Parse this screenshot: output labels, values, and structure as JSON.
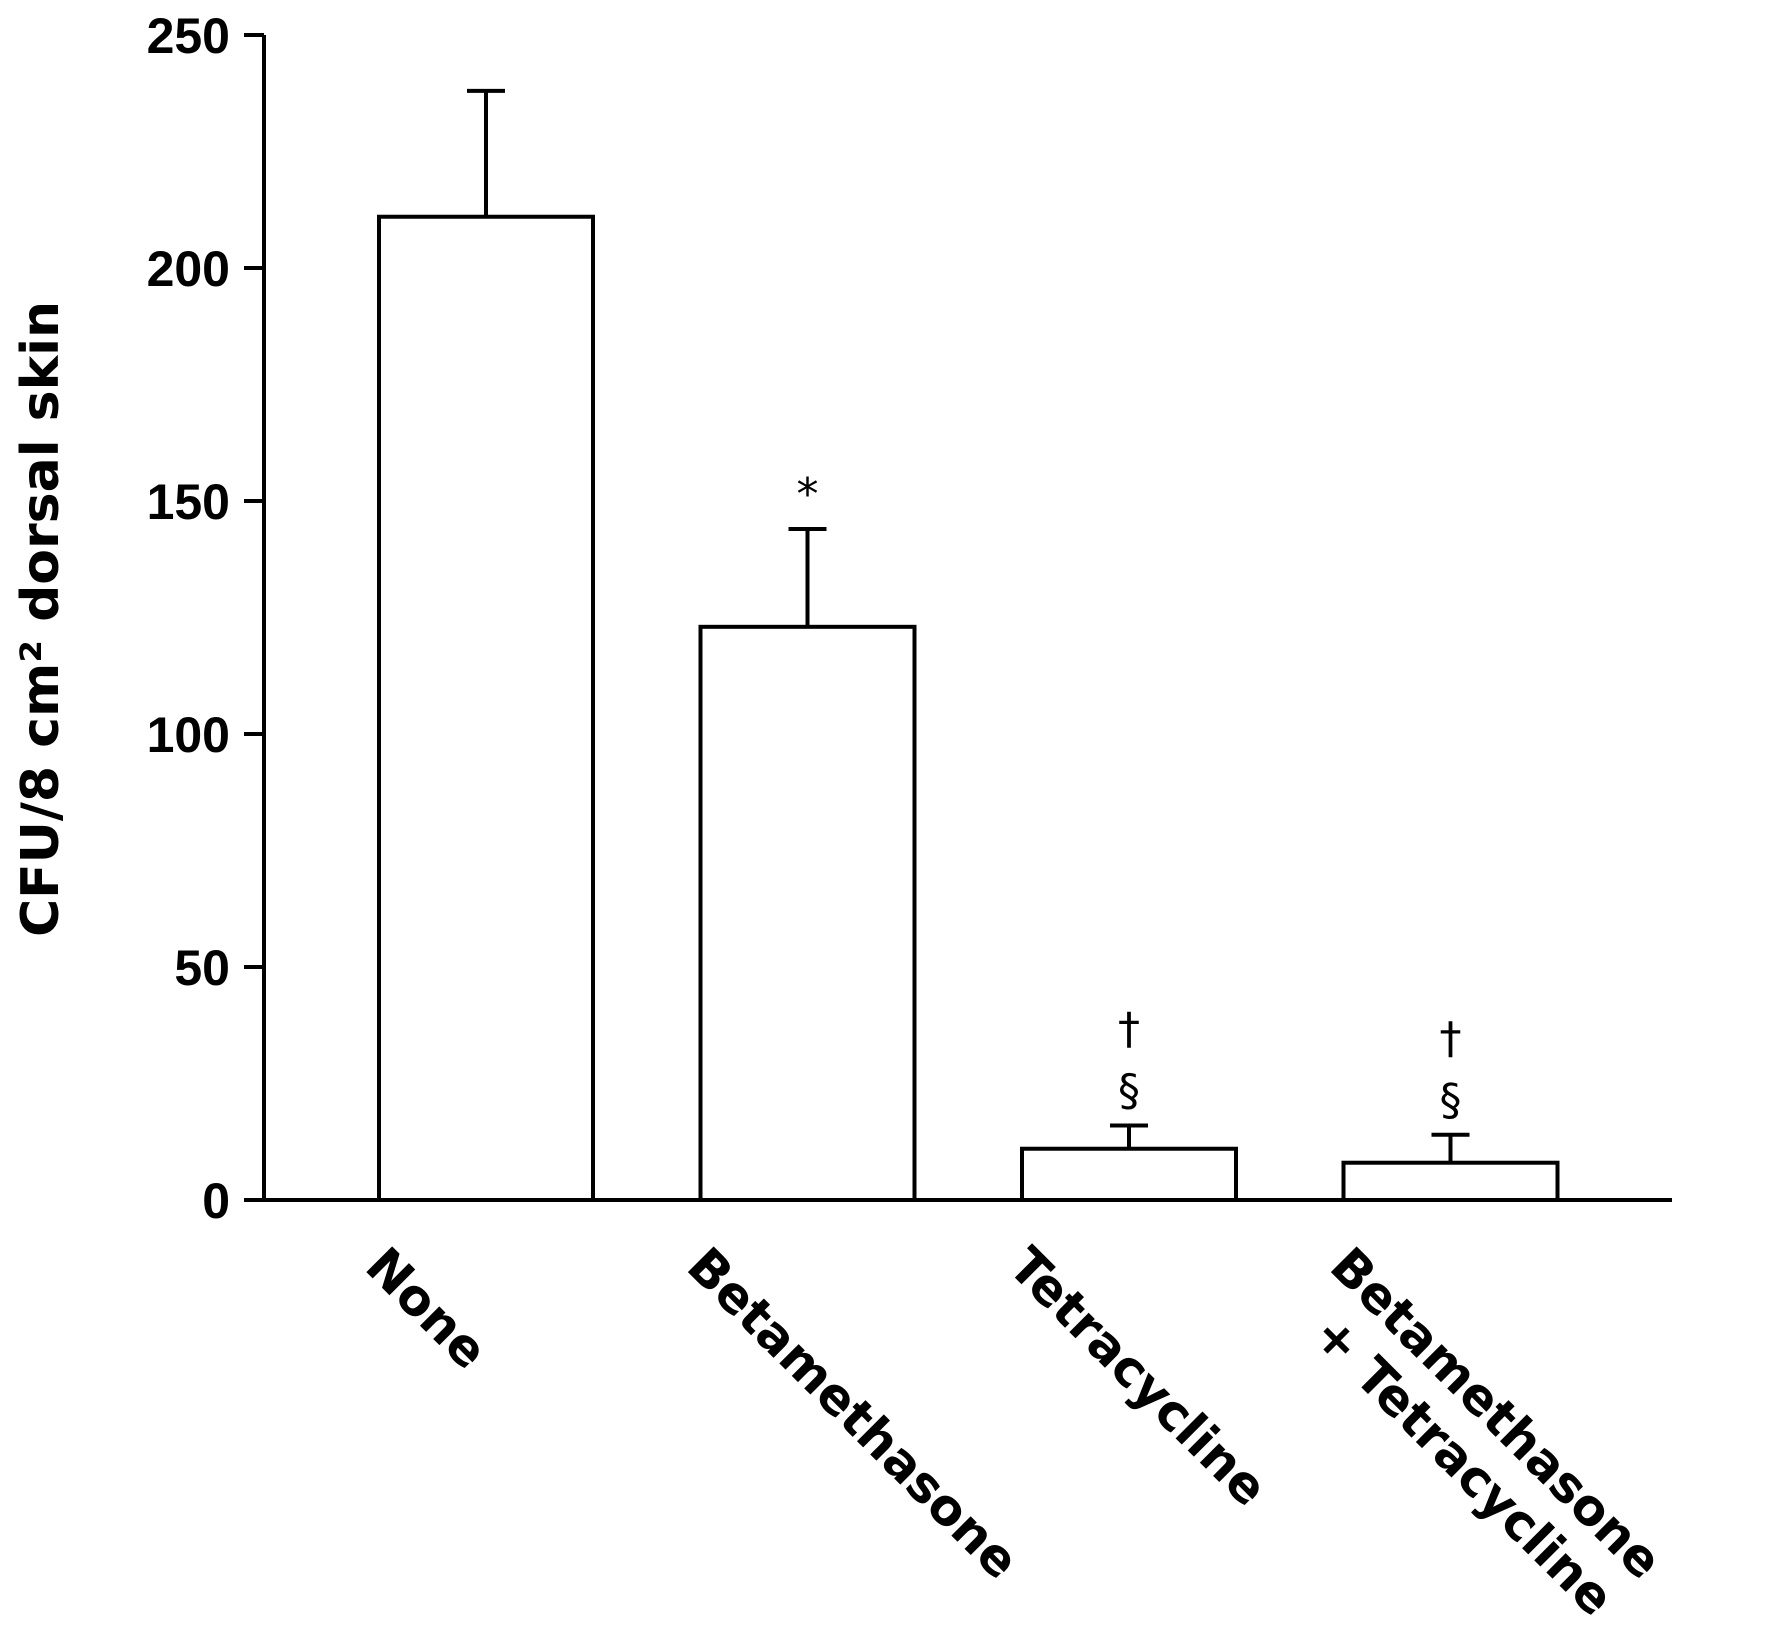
{
  "chart_data": {
    "type": "bar",
    "title": "",
    "xlabel": "",
    "ylabel": "CFU/8 cm² dorsal skin",
    "ylim": [
      0,
      250
    ],
    "yticks": [
      0,
      50,
      100,
      150,
      200,
      250
    ],
    "grid": false,
    "legend": "none",
    "categories": [
      [
        "None"
      ],
      [
        "Betamethasone"
      ],
      [
        "Tetracycline"
      ],
      [
        "Betamethasone",
        "+ Tetracycline"
      ]
    ],
    "series": [
      {
        "values": [
          211,
          123,
          11,
          8
        ],
        "error": [
          27,
          21,
          5,
          6
        ]
      }
    ],
    "annotations": [
      [],
      [
        "*"
      ],
      [
        "§",
        "†"
      ],
      [
        "§",
        "†"
      ]
    ],
    "colors": {
      "bar_fill": "#ffffff",
      "stroke": "#000000"
    }
  }
}
